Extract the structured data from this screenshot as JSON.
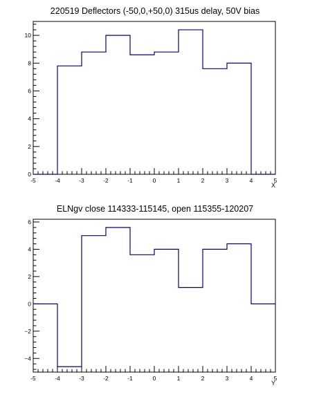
{
  "chart_data": [
    {
      "type": "histogram",
      "title": "220519 Deflectors (-50,0,+50,0) 315us delay, 50V bias",
      "xlabel": "X",
      "ylabel": "",
      "xlim": [
        -5,
        5
      ],
      "ylim": [
        0,
        11
      ],
      "x_ticks": [
        "-5",
        "-4",
        "-3",
        "-2",
        "-1",
        "0",
        "1",
        "2",
        "3",
        "4",
        "5"
      ],
      "y_ticks": [
        "0",
        "2",
        "4",
        "6",
        "8",
        "10"
      ],
      "bin_edges": [
        -5,
        -4,
        -3,
        -2,
        -1,
        0,
        1,
        2,
        3,
        4,
        5
      ],
      "values": [
        0,
        7.8,
        8.8,
        10.0,
        8.6,
        8.8,
        10.4,
        7.6,
        8.0,
        0
      ],
      "line_color": "#000080",
      "grid": false
    },
    {
      "type": "histogram",
      "title": "ELNgv close 114333-115145, open 115355-120207",
      "xlabel": "Y",
      "ylabel": "",
      "xlim": [
        -5,
        5
      ],
      "ylim": [
        -5,
        6.2
      ],
      "x_ticks": [
        "-5",
        "-4",
        "-3",
        "-2",
        "-1",
        "0",
        "1",
        "2",
        "3",
        "4",
        "5"
      ],
      "y_ticks": [
        "−4",
        "−2",
        "0",
        "2",
        "4",
        "6"
      ],
      "bin_edges": [
        -5,
        -4,
        -3,
        -2,
        -1,
        0,
        1,
        2,
        3,
        4,
        5
      ],
      "values": [
        0,
        -4.6,
        5.0,
        5.6,
        3.6,
        4.0,
        1.2,
        4.0,
        4.4,
        0
      ],
      "line_color": "#000080",
      "grid": false
    }
  ]
}
